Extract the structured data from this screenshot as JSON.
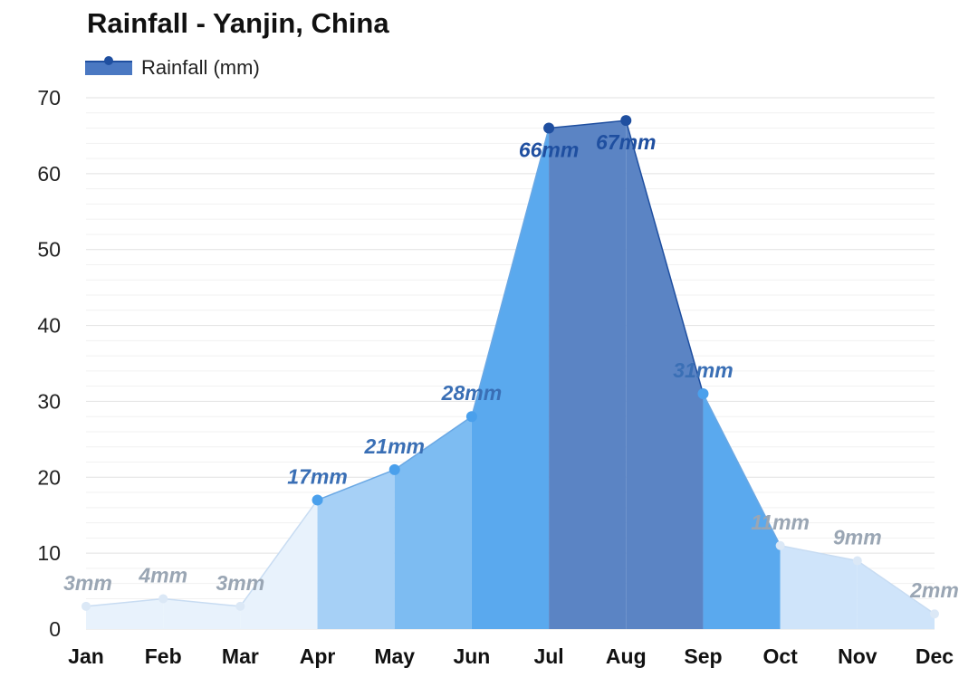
{
  "chart_data": {
    "type": "area",
    "title": "Rainfall - Yanjin, China",
    "xlabel": "",
    "ylabel": "",
    "categories": [
      "Jan",
      "Feb",
      "Mar",
      "Apr",
      "May",
      "Jun",
      "Jul",
      "Aug",
      "Sep",
      "Oct",
      "Nov",
      "Dec"
    ],
    "series": [
      {
        "name": "Rainfall (mm)",
        "values": [
          3,
          4,
          3,
          17,
          21,
          28,
          66,
          67,
          31,
          11,
          9,
          2
        ],
        "labels": [
          "3mm",
          "4mm",
          "3mm",
          "17mm",
          "21mm",
          "28mm",
          "66mm",
          "67mm",
          "31mm",
          "11mm",
          "9mm",
          "2mm"
        ]
      }
    ],
    "ylim": [
      0,
      70
    ],
    "yticks": [
      0,
      10,
      20,
      30,
      40,
      50,
      60,
      70
    ],
    "grid": true,
    "legend_position": "top-left",
    "colors": {
      "dry": "#e8f2fc",
      "low": "#cfe4fa",
      "moderate": "#a6d0f6",
      "wet": "#7dbcf2",
      "very_wet": "#5aa9ee",
      "extreme": "#5b84c4",
      "extreme_line": "#1f4fa0",
      "label_dry": "#9aa6b4",
      "label_wet": "#3a6fb5",
      "label_extreme": "#1f4fa0"
    }
  }
}
